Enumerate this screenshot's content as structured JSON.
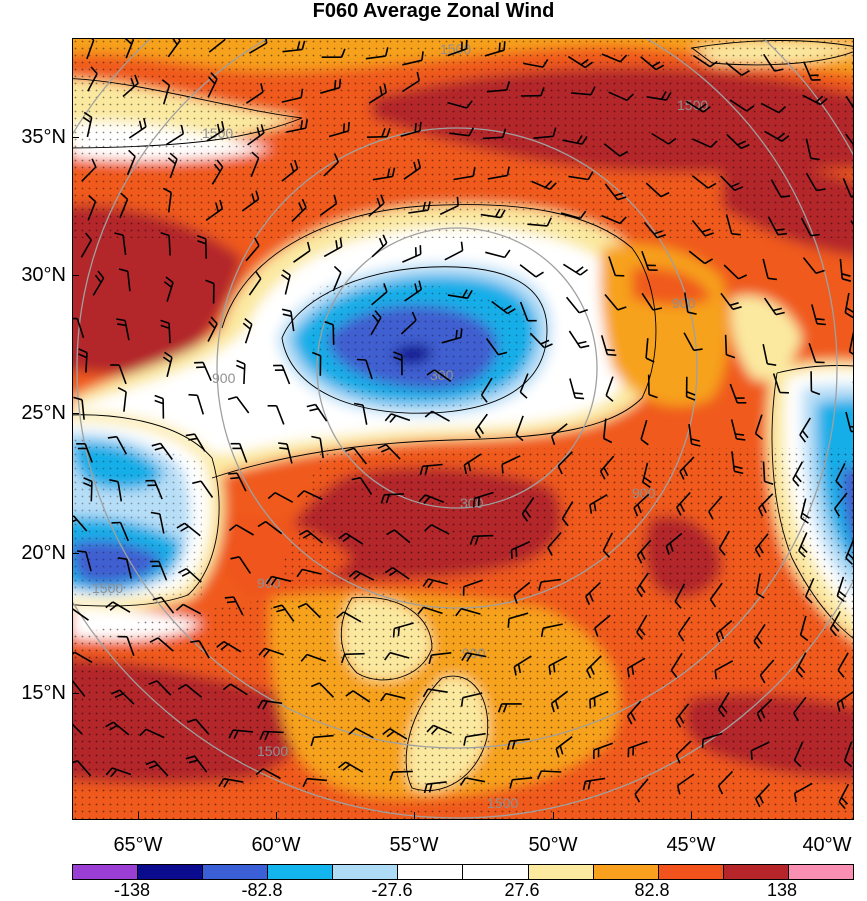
{
  "title": "F060 Average Zonal Wind",
  "map": {
    "lat_labels": [
      "35°N",
      "30°N",
      "25°N",
      "20°N",
      "15°N"
    ],
    "lon_labels": [
      "65°W",
      "60°W",
      "55°W",
      "50°W",
      "45°W",
      "40°W"
    ],
    "ring_labels": [
      "300",
      "300",
      "900",
      "900",
      "900",
      "900",
      "900",
      "1500",
      "1500",
      "1500",
      "1500",
      "1500",
      "1500"
    ]
  },
  "colorbar": {
    "labels": [
      "-138",
      "-82.8",
      "-27.6",
      "27.6",
      "82.8",
      "138"
    ],
    "colors": [
      "#9b3fd4",
      "#0b0b8f",
      "#3a5fd6",
      "#14b4ee",
      "#aedcf7",
      "#ffffff",
      "#ffffff",
      "#fbeaa0",
      "#f9a11f",
      "#f2531d",
      "#b5252a",
      "#f98fb2"
    ]
  },
  "colors": {
    "dark_red": "#b3262b",
    "orange_red": "#ef541d",
    "orange": "#f7a21e",
    "pale_yellow": "#fbe9a0",
    "white": "#ffffff",
    "light_blue": "#b7def7",
    "cyan": "#18aee8",
    "blue": "#3f5fd0",
    "navy": "#0d0c90",
    "ring_gray": "#a0a0a0"
  }
}
